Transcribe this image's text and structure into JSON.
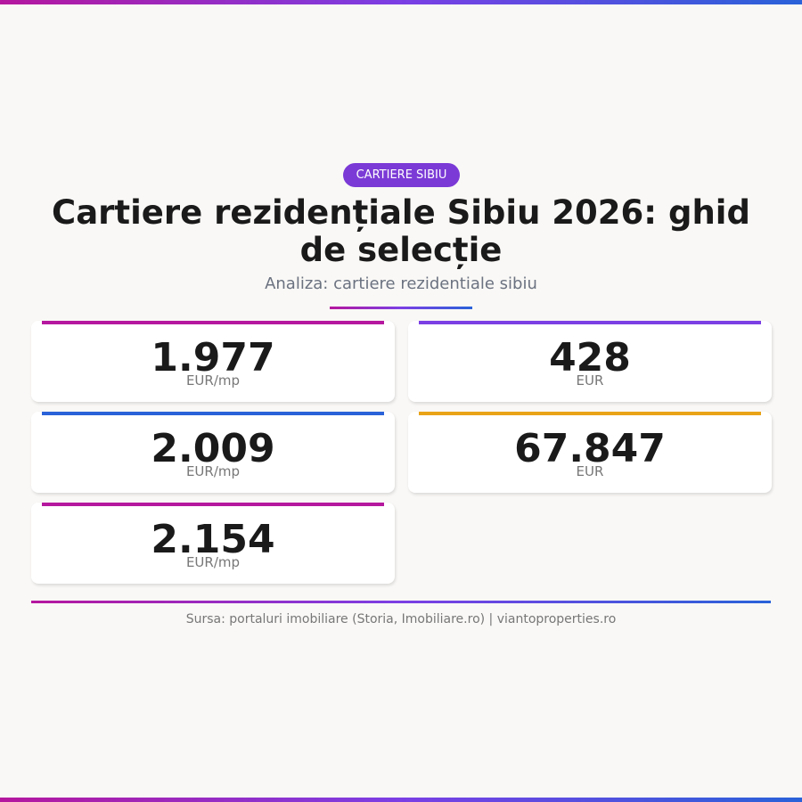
{
  "badge": "CARTIERE SIBIU",
  "title": "Cartiere rezidențiale Sibiu 2026: ghid de selecție",
  "subtitle": "Analiza: cartiere rezidentiale sibiu",
  "cards": [
    {
      "value": "1.977",
      "unit": "EUR/mp",
      "accent": "#b5179e"
    },
    {
      "value": "428",
      "unit": "EUR",
      "accent": "#7b3fe4"
    },
    {
      "value": "2.009",
      "unit": "EUR/mp",
      "accent": "#2962d9"
    },
    {
      "value": "67.847",
      "unit": "EUR",
      "accent": "#e8a317"
    },
    {
      "value": "2.154",
      "unit": "EUR/mp",
      "accent": "#b5179e"
    }
  ],
  "source": "Sursa: portaluri imobiliare (Storia, Imobiliare.ro) | viantoproperties.ro"
}
